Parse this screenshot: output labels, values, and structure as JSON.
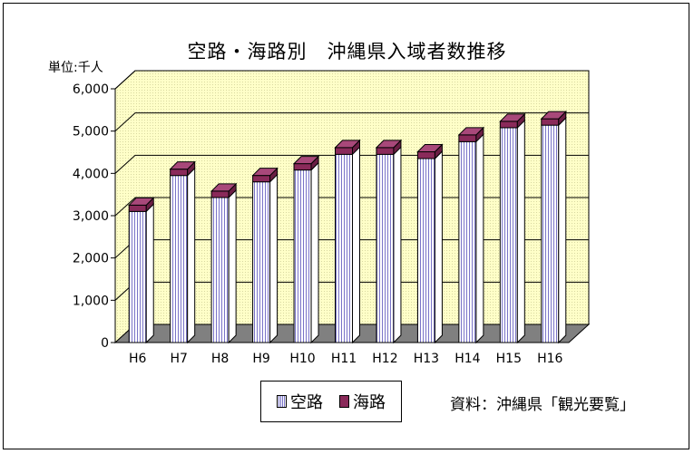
{
  "chart_data": {
    "type": "bar",
    "stacked": true,
    "title": "空路・海路別　沖縄県入域者数推移",
    "unit_label": "単位:千人",
    "categories": [
      "H6",
      "H7",
      "H8",
      "H9",
      "H10",
      "H11",
      "H12",
      "H13",
      "H14",
      "H15",
      "H16"
    ],
    "series": [
      {
        "name": "空路",
        "values": [
          3100,
          3950,
          3430,
          3800,
          4080,
          4450,
          4450,
          4350,
          4750,
          5080,
          5140
        ],
        "color": "#7a74c8"
      },
      {
        "name": "海路",
        "values": [
          150,
          150,
          150,
          150,
          150,
          160,
          160,
          160,
          160,
          150,
          150
        ],
        "color": "#8a2a5a"
      }
    ],
    "yticks": [
      "0",
      "1,000",
      "2,000",
      "3,000",
      "4,000",
      "5,000",
      "6,000"
    ],
    "ylim": [
      0,
      6000
    ],
    "grid": true,
    "legend_position": "bottom",
    "wall_color": "#ffffc8",
    "floor_color": "#808080"
  },
  "source_note": "資料：沖縄県「観光要覧」"
}
